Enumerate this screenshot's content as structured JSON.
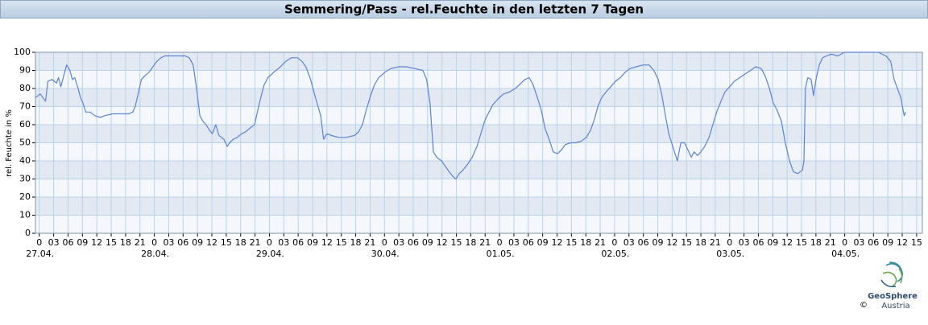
{
  "chart_data": {
    "type": "line",
    "title": "Semmering/Pass - rel.Feuchte in den letzten 7 Tagen",
    "ylabel": "rel. Feuchte in %",
    "x": [
      -0.8,
      0.2,
      1.3,
      1.8,
      2.7,
      3.6,
      4.0,
      4.5,
      5.2,
      5.7,
      6.4,
      6.9,
      7.4,
      8.1,
      8.6,
      9.1,
      9.7,
      10.6,
      11.6,
      12.8,
      13.6,
      15.3,
      17.0,
      18.7,
      19.5,
      20.0,
      20.7,
      21.3,
      22.0,
      22.9,
      23.7,
      24.5,
      25.4,
      26.2,
      27.1,
      28.7,
      30.4,
      31.3,
      32.1,
      32.8,
      33.5,
      34.1,
      34.8,
      35.5,
      36.1,
      36.8,
      37.5,
      38.5,
      39.2,
      39.7,
      40.5,
      41.3,
      42.2,
      43.0,
      43.9,
      44.9,
      45.5,
      46.2,
      46.9,
      47.7,
      48.9,
      50.3,
      51.4,
      52.6,
      53.9,
      54.8,
      55.6,
      56.6,
      57.6,
      58.7,
      59.3,
      60.0,
      61.0,
      62.4,
      64.0,
      65.7,
      66.6,
      67.4,
      68.2,
      69.1,
      69.9,
      70.8,
      72.1,
      73.3,
      75.0,
      76.6,
      78.3,
      80.0,
      80.8,
      81.5,
      82.2,
      82.9,
      83.9,
      84.7,
      85.5,
      86.4,
      86.9,
      87.6,
      88.4,
      89.3,
      90.3,
      91.3,
      92.1,
      92.9,
      93.8,
      94.6,
      95.6,
      96.8,
      98.0,
      99.3,
      100.5,
      101.3,
      102.2,
      103.0,
      103.9,
      104.7,
      105.5,
      106.6,
      107.2,
      108.1,
      108.9,
      109.7,
      110.8,
      111.9,
      113.1,
      114.1,
      115.0,
      115.8,
      116.5,
      117.3,
      118.2,
      119.2,
      120.2,
      121.2,
      122.2,
      123.2,
      124.5,
      125.9,
      127.2,
      128.2,
      129.1,
      129.9,
      130.6,
      131.3,
      131.9,
      132.6,
      133.1,
      133.8,
      134.6,
      135.3,
      136.0,
      136.6,
      137.3,
      138.0,
      138.8,
      139.7,
      140.5,
      141.3,
      142.2,
      143.0,
      144.0,
      145.0,
      146.1,
      147.2,
      148.4,
      149.4,
      150.6,
      151.4,
      152.3,
      153.1,
      153.9,
      154.8,
      155.6,
      156.5,
      157.3,
      158.2,
      159.2,
      159.5,
      159.8,
      160.3,
      161.0,
      161.5,
      162.0,
      162.7,
      163.4,
      164.2,
      165.2,
      166.6,
      167.9,
      169.9,
      172.4,
      175.0,
      176.6,
      177.6,
      178.3,
      179.0,
      179.7,
      180.4,
      180.7
    ],
    "series": [
      {
        "color": "#5b83d6",
        "values": [
          75,
          77,
          73,
          84,
          85,
          83,
          86,
          81,
          88,
          93,
          90,
          85,
          86,
          80,
          75,
          72,
          67,
          67,
          65,
          64,
          65,
          66,
          66,
          66,
          67,
          70,
          78,
          85,
          87,
          89,
          92,
          95,
          97,
          98,
          98,
          98,
          98,
          97,
          93,
          80,
          65,
          62,
          60,
          57,
          55,
          60,
          54,
          52,
          48,
          50,
          52,
          53,
          55,
          56,
          58,
          60,
          67,
          75,
          82,
          86,
          89,
          92,
          95,
          97,
          97,
          95,
          92,
          85,
          75,
          65,
          52,
          55,
          54,
          53,
          53,
          54,
          56,
          60,
          68,
          76,
          82,
          86,
          89,
          91,
          92,
          92,
          91,
          90,
          85,
          72,
          45,
          42,
          40,
          37,
          34,
          31,
          30,
          33,
          35,
          38,
          42,
          48,
          55,
          62,
          67,
          71,
          74,
          77,
          78,
          80,
          83,
          85,
          86,
          82,
          75,
          68,
          58,
          50,
          45,
          44,
          46,
          49,
          50,
          50,
          51,
          53,
          57,
          63,
          70,
          75,
          78,
          81,
          84,
          86,
          89,
          91,
          92,
          93,
          93,
          90,
          85,
          76,
          65,
          55,
          50,
          44,
          40,
          50,
          50,
          46,
          42,
          45,
          43,
          45,
          48,
          53,
          60,
          67,
          73,
          78,
          81,
          84,
          86,
          88,
          90,
          92,
          91,
          87,
          80,
          72,
          68,
          62,
          50,
          40,
          34,
          33,
          35,
          40,
          80,
          86,
          85,
          76,
          85,
          93,
          97,
          98,
          99,
          98,
          100,
          100,
          100,
          100,
          98,
          95,
          85,
          80,
          75,
          65,
          67
        ]
      }
    ],
    "xlim": [
      -0.8,
      184.2
    ],
    "xticks": [
      0,
      {
        "value": 3,
        "label": "03"
      },
      {
        "value": 6,
        "label": "06"
      },
      {
        "value": 9,
        "label": "09"
      },
      12,
      15,
      18,
      21,
      {
        "value": 24,
        "label": "0"
      },
      {
        "value": 27,
        "label": "03"
      },
      {
        "value": 30,
        "label": "06"
      },
      {
        "value": 33,
        "label": "09"
      },
      {
        "value": 36,
        "label": "12"
      },
      {
        "value": 39,
        "label": "15"
      },
      {
        "value": 42,
        "label": "18"
      },
      {
        "value": 45,
        "label": "21"
      },
      {
        "value": 48,
        "label": "0"
      },
      {
        "value": 51,
        "label": "03"
      },
      {
        "value": 54,
        "label": "06"
      },
      {
        "value": 57,
        "label": "09"
      },
      {
        "value": 60,
        "label": "12"
      },
      {
        "value": 63,
        "label": "15"
      },
      {
        "value": 66,
        "label": "18"
      },
      {
        "value": 69,
        "label": "21"
      },
      {
        "value": 72,
        "label": "0"
      },
      {
        "value": 75,
        "label": "03"
      },
      {
        "value": 78,
        "label": "06"
      },
      {
        "value": 81,
        "label": "09"
      },
      {
        "value": 84,
        "label": "12"
      },
      {
        "value": 87,
        "label": "15"
      },
      {
        "value": 90,
        "label": "18"
      },
      {
        "value": 93,
        "label": "21"
      },
      {
        "value": 96,
        "label": "0"
      },
      {
        "value": 99,
        "label": "03"
      },
      {
        "value": 102,
        "label": "06"
      },
      {
        "value": 105,
        "label": "09"
      },
      {
        "value": 108,
        "label": "12"
      },
      {
        "value": 111,
        "label": "15"
      },
      {
        "value": 114,
        "label": "18"
      },
      {
        "value": 117,
        "label": "21"
      },
      {
        "value": 120,
        "label": "0"
      },
      {
        "value": 123,
        "label": "03"
      },
      {
        "value": 126,
        "label": "06"
      },
      {
        "value": 129,
        "label": "09"
      },
      {
        "value": 132,
        "label": "12"
      },
      {
        "value": 135,
        "label": "15"
      },
      {
        "value": 138,
        "label": "18"
      },
      {
        "value": 141,
        "label": "21"
      },
      {
        "value": 144,
        "label": "0"
      },
      {
        "value": 147,
        "label": "03"
      },
      {
        "value": 150,
        "label": "06"
      },
      {
        "value": 153,
        "label": "09"
      },
      {
        "value": 156,
        "label": "12"
      },
      {
        "value": 159,
        "label": "15"
      },
      {
        "value": 162,
        "label": "18"
      },
      {
        "value": 165,
        "label": "21"
      },
      {
        "value": 168,
        "label": "0"
      },
      {
        "value": 171,
        "label": "03"
      },
      {
        "value": 174,
        "label": "06"
      },
      {
        "value": 177,
        "label": "09"
      },
      {
        "value": 180,
        "label": "12"
      },
      {
        "value": 183,
        "label": "15"
      }
    ],
    "date_ticks": [
      {
        "value": 0,
        "label": "27.04."
      },
      {
        "value": 24,
        "label": "28.04."
      },
      {
        "value": 48,
        "label": "29.04."
      },
      {
        "value": 72,
        "label": "30.04."
      },
      {
        "value": 96,
        "label": "01.05."
      },
      {
        "value": 120,
        "label": "02.05."
      },
      {
        "value": 144,
        "label": "03.05."
      },
      {
        "value": 168,
        "label": "04.05."
      }
    ],
    "ylim": [
      0,
      100
    ],
    "yticks": [
      0,
      10,
      20,
      30,
      40,
      50,
      60,
      70,
      80,
      90,
      100
    ],
    "grid": true
  },
  "logo": {
    "name": "GeoSphere",
    "sub": "Austria",
    "copyright": "©"
  }
}
